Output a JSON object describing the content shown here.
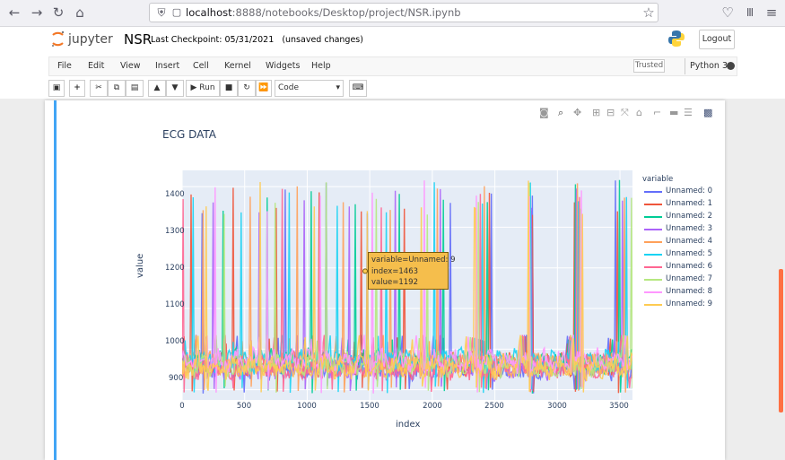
{
  "browser": {
    "url_host": "localhost",
    "url_rest": ":8888/notebooks/Desktop/project/NSR.ipynb"
  },
  "jupyter": {
    "logo_text": "jupyter",
    "notebook_name": "NSR",
    "checkpoint": "Last Checkpoint: 05/31/2021",
    "status": "(unsaved changes)",
    "logout": "Logout",
    "trusted": "Trusted",
    "kernel": "Python 3"
  },
  "menu": [
    "File",
    "Edit",
    "View",
    "Insert",
    "Cell",
    "Kernel",
    "Widgets",
    "Help"
  ],
  "toolbar": {
    "run_label": "Run",
    "cell_type": "Code"
  },
  "chart_data": {
    "type": "line",
    "title": "ECG DATA",
    "xlabel": "index",
    "ylabel": "value",
    "xlim": [
      0,
      3600
    ],
    "ylim": [
      875,
      1440
    ],
    "xticks": [
      0,
      500,
      1000,
      1500,
      2000,
      2500,
      3000,
      3500
    ],
    "yticks": [
      900,
      1000,
      1100,
      1200,
      1300,
      1400
    ],
    "legend_title": "variable",
    "legend_position": "right",
    "series": [
      {
        "name": "Unnamed: 0",
        "color": "#636efa"
      },
      {
        "name": "Unnamed: 1",
        "color": "#ef553b"
      },
      {
        "name": "Unnamed: 2",
        "color": "#00cc96"
      },
      {
        "name": "Unnamed: 3",
        "color": "#ab63fa"
      },
      {
        "name": "Unnamed: 4",
        "color": "#ffa15a"
      },
      {
        "name": "Unnamed: 5",
        "color": "#19d3f3"
      },
      {
        "name": "Unnamed: 6",
        "color": "#ff6692"
      },
      {
        "name": "Unnamed: 7",
        "color": "#b6e880"
      },
      {
        "name": "Unnamed: 8",
        "color": "#ff97ff"
      },
      {
        "name": "Unnamed: 9",
        "color": "#fecb52"
      }
    ],
    "tooltip": {
      "line1": "variable=Unnamed: 9",
      "line2": "index=1463",
      "line3": "value=1192"
    }
  }
}
